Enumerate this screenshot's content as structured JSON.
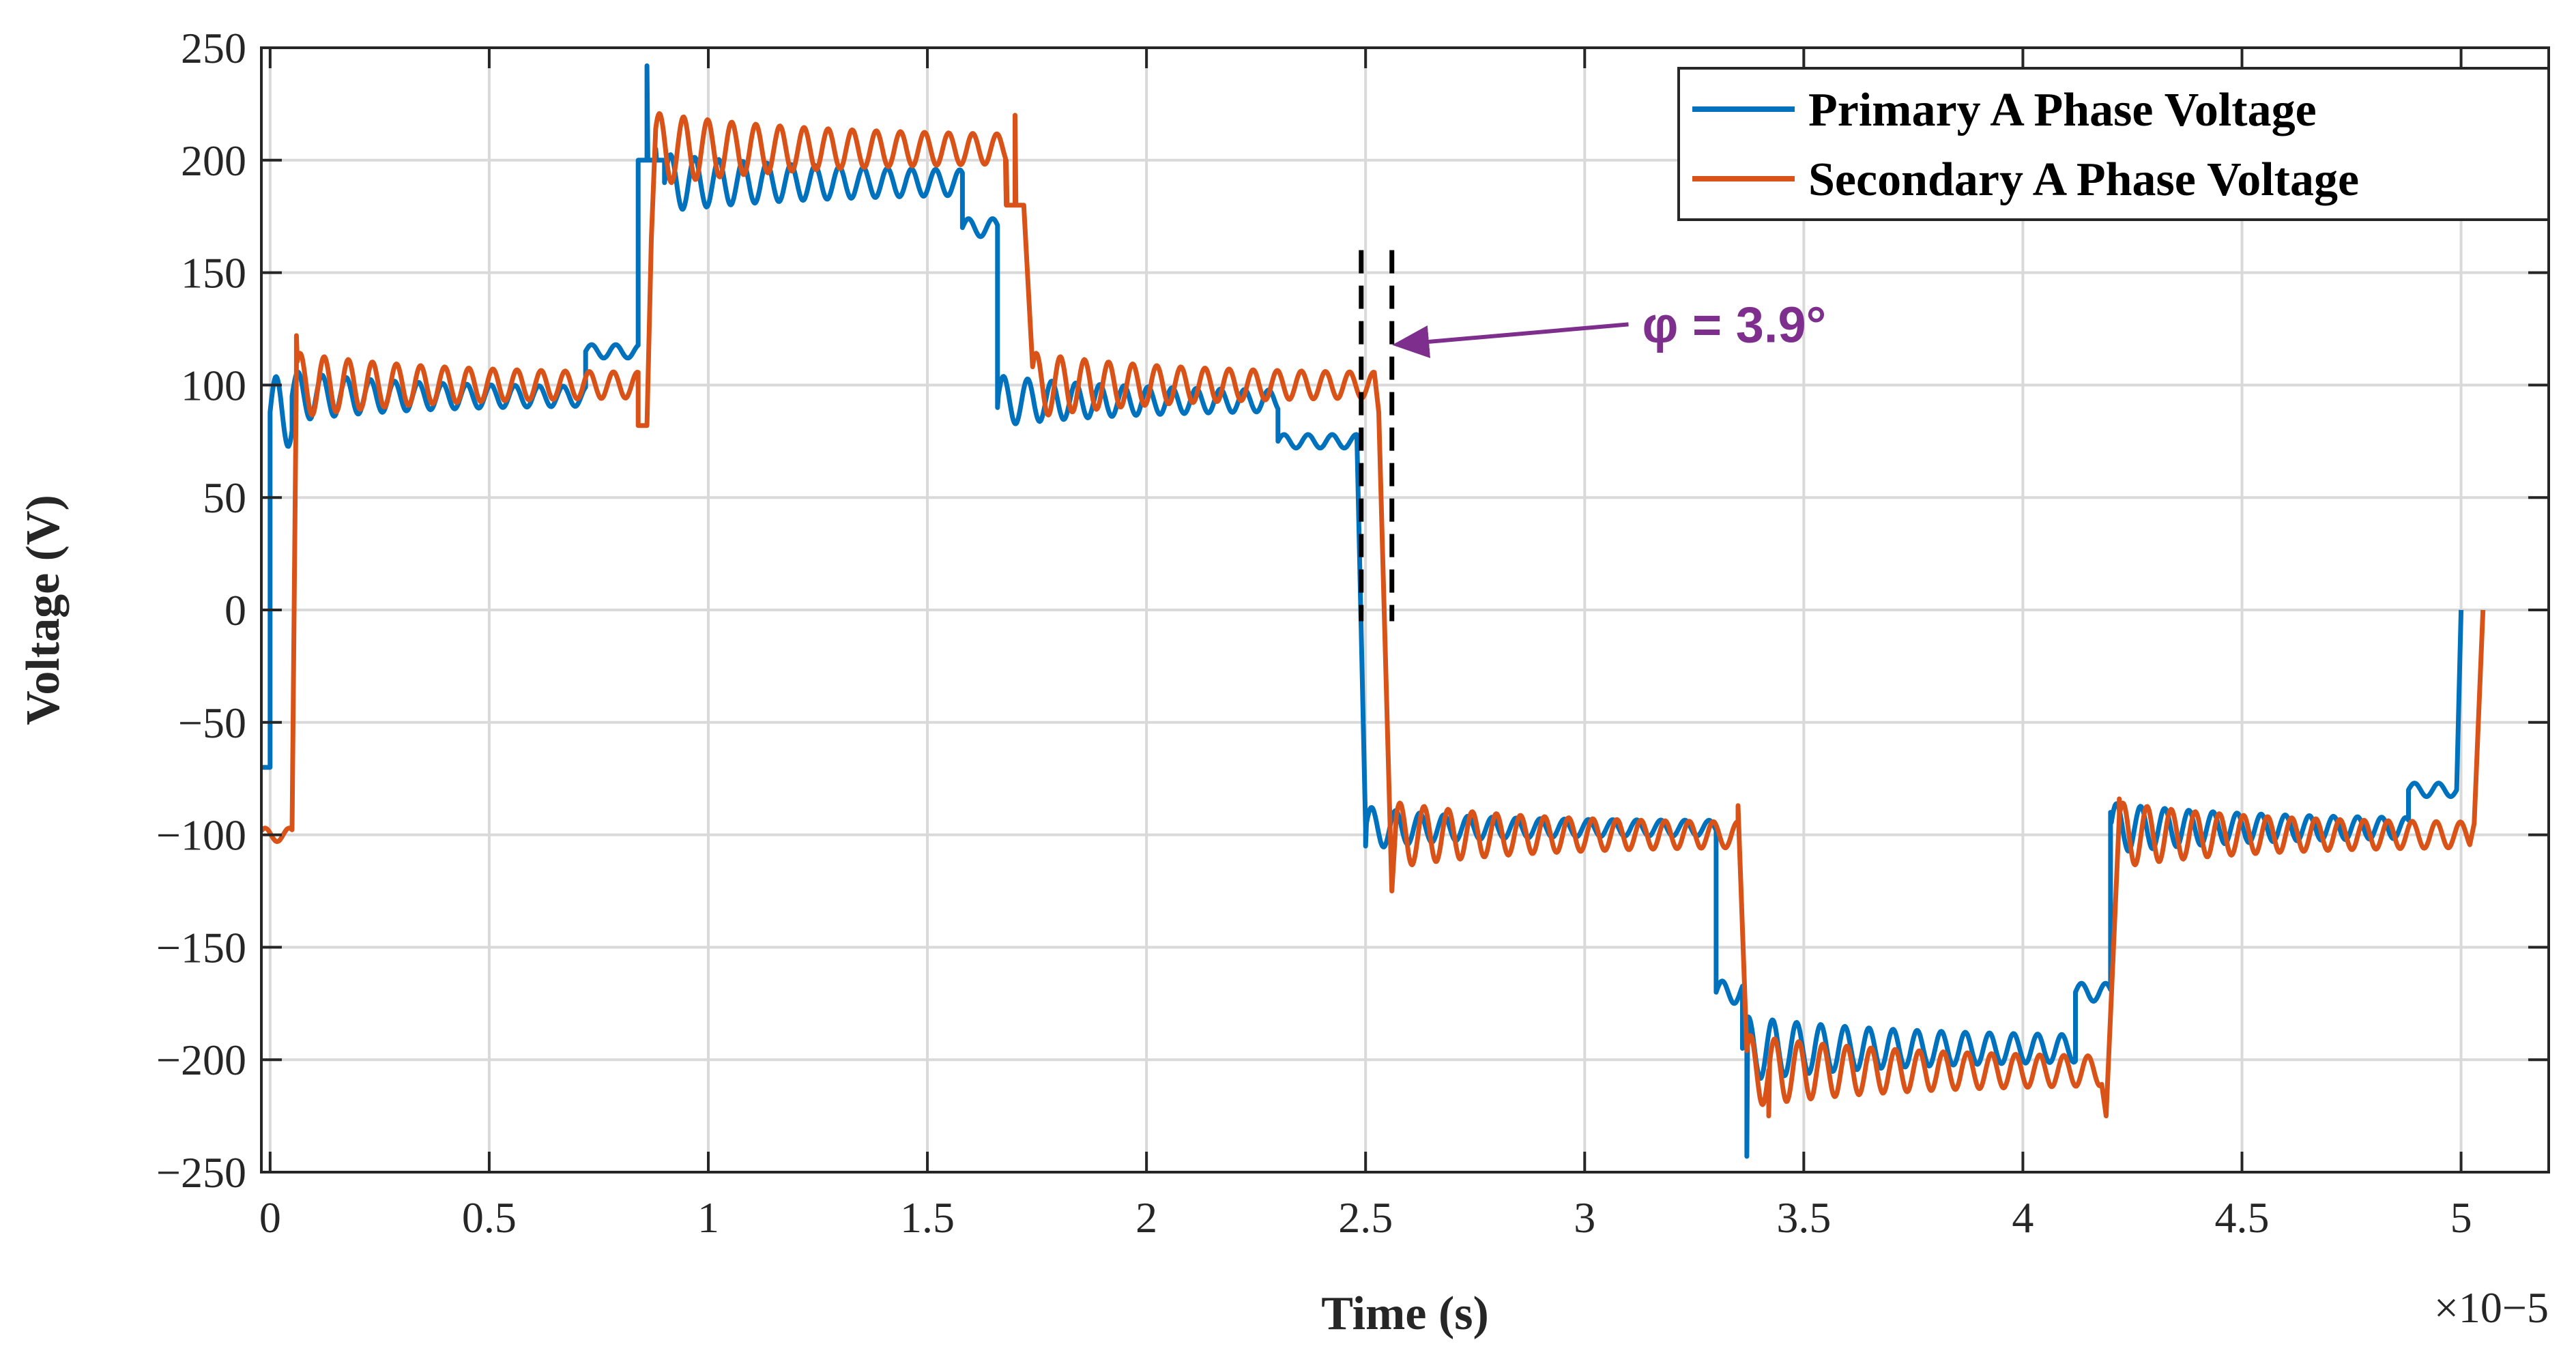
{
  "chart_data": {
    "type": "line",
    "title": "",
    "xlabel": "Time (s)",
    "ylabel": "Voltage (V)",
    "x_scale_exponent": "×10−5",
    "xlim": [
      -0.02,
      5.2
    ],
    "ylim": [
      -250,
      250
    ],
    "grid": true,
    "legend_position": "top-right",
    "x_ticks": [
      0,
      0.5,
      1,
      1.5,
      2,
      2.5,
      3,
      3.5,
      4,
      4.5,
      5
    ],
    "x_tick_labels": [
      "0",
      "0.5",
      "1",
      "1.5",
      "2",
      "2.5",
      "3",
      "3.5",
      "4",
      "4.5",
      "5"
    ],
    "y_ticks": [
      250,
      200,
      150,
      100,
      50,
      0,
      -50,
      -100,
      -150,
      -200,
      -250
    ],
    "y_tick_labels": [
      "250",
      "200",
      "150",
      "100",
      "50",
      "0",
      "−50",
      "−100",
      "−150",
      "−200",
      "−250"
    ],
    "series": [
      {
        "name": "Primary A Phase Voltage",
        "color": "#0072BD",
        "segments": [
          {
            "t0": -0.02,
            "t1": 0.0,
            "level": -70,
            "amp": 0,
            "settle": 0
          },
          {
            "t0": 0.0,
            "t1": 0.05,
            "level": 88,
            "amp": 10,
            "settle": 0.6
          },
          {
            "t0": 0.05,
            "t1": 0.72,
            "level": 95,
            "amp": 7,
            "settle": 0.25
          },
          {
            "t0": 0.72,
            "t1": 0.84,
            "level": 115,
            "amp": 3,
            "settle": 0
          },
          {
            "t0": 0.84,
            "t1": 0.9,
            "level": 200,
            "amp": 0,
            "settle": 0
          },
          {
            "t0": 0.9,
            "t1": 1.58,
            "level": 190,
            "amp": 8,
            "settle": 0.35
          },
          {
            "t0": 1.58,
            "t1": 1.66,
            "level": 170,
            "amp": 4,
            "settle": 0
          },
          {
            "t0": 1.66,
            "t1": 2.3,
            "level": 93,
            "amp": 7,
            "settle": 0.3
          },
          {
            "t0": 2.3,
            "t1": 2.48,
            "level": 75,
            "amp": 3,
            "settle": 0
          },
          {
            "t0": 2.5,
            "t1": 3.3,
            "level": -97,
            "amp": 6,
            "settle": 0.2
          },
          {
            "t0": 3.3,
            "t1": 3.36,
            "level": -170,
            "amp": 5,
            "settle": 0
          },
          {
            "t0": 3.36,
            "t1": 4.12,
            "level": -195,
            "amp": 9,
            "settle": 0.35
          },
          {
            "t0": 4.12,
            "t1": 4.2,
            "level": -170,
            "amp": 4,
            "settle": 0
          },
          {
            "t0": 4.2,
            "t1": 4.88,
            "level": -97,
            "amp": 7,
            "settle": 0.3
          },
          {
            "t0": 4.88,
            "t1": 4.99,
            "level": -80,
            "amp": 3,
            "settle": 0
          }
        ],
        "keypoints": [
          [
            0.86,
            242
          ],
          [
            0.88,
            205
          ],
          [
            1.66,
            90
          ],
          [
            2.5,
            -105
          ],
          [
            3.37,
            -243
          ],
          [
            4.2,
            -90
          ],
          [
            5.0,
            0
          ]
        ]
      },
      {
        "name": "Secondary A Phase Voltage",
        "color": "#D95319",
        "segments": [
          {
            "t0": -0.02,
            "t1": 0.05,
            "level": -100,
            "amp": 3,
            "settle": 0
          },
          {
            "t0": 0.06,
            "t1": 0.84,
            "level": 100,
            "amp": 9,
            "settle": 0.3
          },
          {
            "t0": 0.84,
            "t1": 0.86,
            "level": 82,
            "amp": 0,
            "settle": 0
          },
          {
            "t0": 0.88,
            "t1": 1.68,
            "level": 205,
            "amp": 10,
            "settle": 0.35
          },
          {
            "t0": 1.68,
            "t1": 1.72,
            "level": 180,
            "amp": 0,
            "settle": 0
          },
          {
            "t0": 1.74,
            "t1": 2.52,
            "level": 100,
            "amp": 9,
            "settle": 0.3
          },
          {
            "t0": 2.57,
            "t1": 3.35,
            "level": -100,
            "amp": 9,
            "settle": 0.3
          },
          {
            "t0": 3.37,
            "t1": 4.18,
            "level": -205,
            "amp": 10,
            "settle": 0.35
          },
          {
            "t0": 4.22,
            "t1": 5.02,
            "level": -100,
            "amp": 9,
            "settle": 0.3
          }
        ],
        "keypoints": [
          [
            0.06,
            122
          ],
          [
            0.87,
            165
          ],
          [
            1.7,
            220
          ],
          [
            2.53,
            88
          ],
          [
            2.56,
            -125
          ],
          [
            3.35,
            -87
          ],
          [
            3.42,
            -225
          ],
          [
            4.19,
            -225
          ],
          [
            4.22,
            -84
          ],
          [
            5.03,
            -95
          ],
          [
            5.05,
            0
          ]
        ]
      }
    ],
    "annotations": [
      {
        "text": "φ = 3.9°",
        "color": "#7E2F8E",
        "marker_times": [
          2.49,
          2.56
        ],
        "marker_ylim": [
          -5,
          160
        ],
        "arrow_from": [
          3.1,
          127
        ],
        "arrow_to": [
          2.57,
          118
        ]
      }
    ]
  }
}
